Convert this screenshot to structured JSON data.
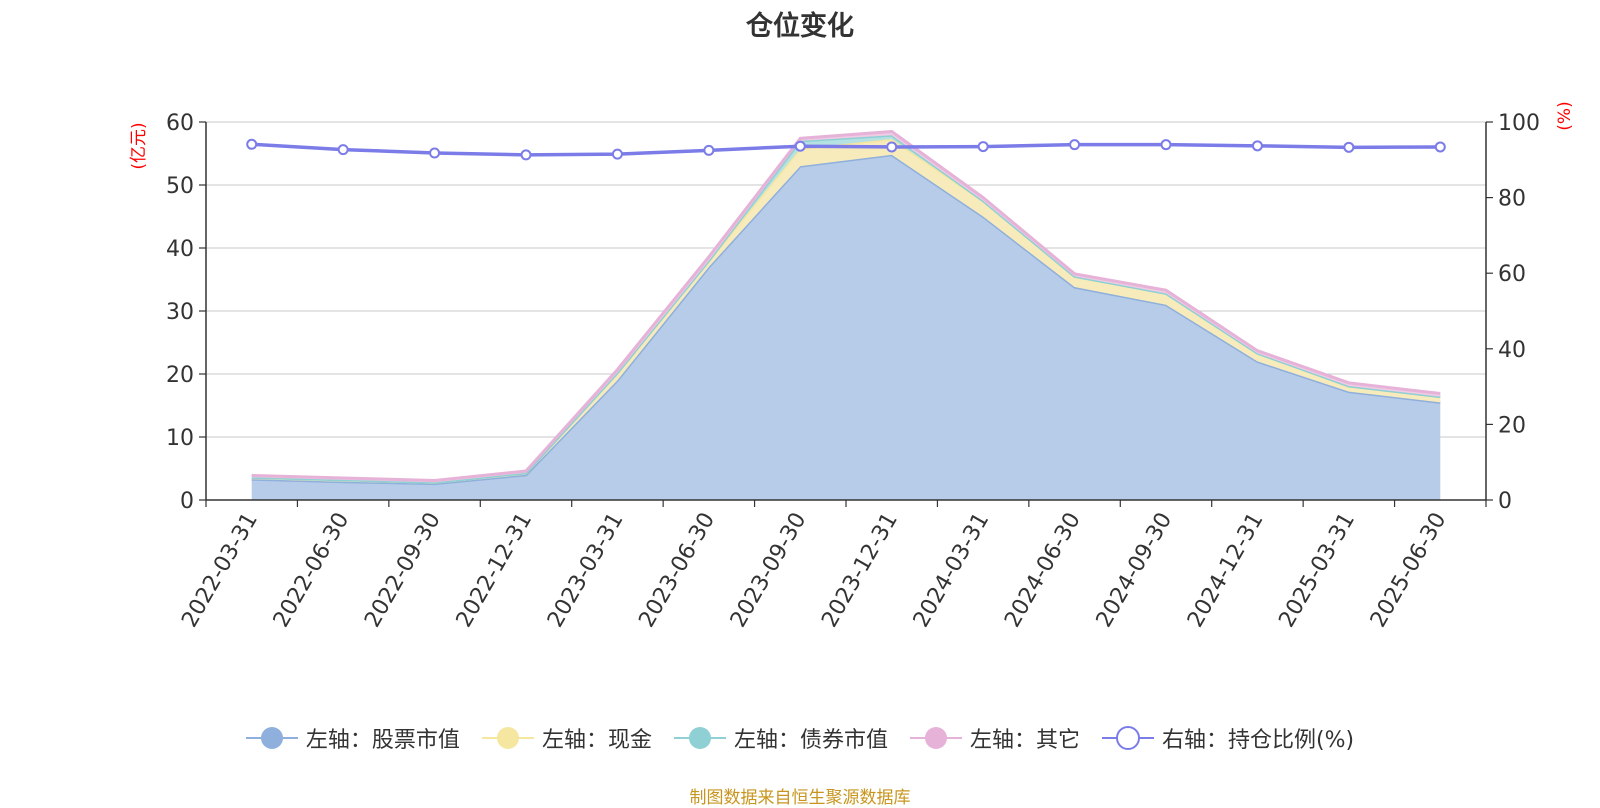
{
  "chart_data": {
    "type": "area",
    "title": "仓位变化",
    "left_axis_label": "(亿元)",
    "right_axis_label": "(%)",
    "categories": [
      "2022-03-31",
      "2022-06-30",
      "2022-09-30",
      "2022-12-31",
      "2023-03-31",
      "2023-06-30",
      "2023-09-30",
      "2023-12-31",
      "2024-03-31",
      "2024-06-30",
      "2024-09-30",
      "2024-12-31",
      "2025-03-31",
      "2025-06-30"
    ],
    "left_ylim": [
      0,
      60
    ],
    "left_ticks": [
      "0",
      "10",
      "20",
      "30",
      "40",
      "50",
      "60"
    ],
    "right_ylim": [
      0,
      100
    ],
    "right_ticks": [
      "0",
      "20",
      "40",
      "60",
      "80",
      "100"
    ],
    "stacked": true,
    "grid": true,
    "legend_position": "bottom",
    "series": [
      {
        "name": "左轴：股票市值",
        "axis": "left",
        "color": "#8fafdc",
        "fill": "#b7cce9",
        "values": [
          3.3,
          2.9,
          2.6,
          4.0,
          19.0,
          37.0,
          53.0,
          54.8,
          45.0,
          33.8,
          31.0,
          22.0,
          17.2,
          15.5
        ]
      },
      {
        "name": "左轴：现金",
        "axis": "left",
        "color": "#f5e6a0",
        "fill": "#f8ebbb",
        "values": [
          0.3,
          0.3,
          0.2,
          0.3,
          1.2,
          1.0,
          2.8,
          2.5,
          2.5,
          1.7,
          1.8,
          1.3,
          0.9,
          0.9
        ]
      },
      {
        "name": "左轴：债券市值",
        "axis": "left",
        "color": "#8fd0d4",
        "fill": "#b5e1e3",
        "values": [
          0.0,
          0.0,
          0.0,
          0.0,
          0.0,
          0.0,
          1.2,
          0.6,
          0.0,
          0.0,
          0.0,
          0.0,
          0.0,
          0.0
        ]
      },
      {
        "name": "左轴：其它",
        "axis": "left",
        "color": "#e6b2d8",
        "fill": "#efcbe4",
        "values": [
          0.3,
          0.3,
          0.3,
          0.3,
          0.5,
          0.6,
          0.4,
          0.6,
          0.5,
          0.4,
          0.5,
          0.4,
          0.5,
          0.5
        ]
      },
      {
        "name": "右轴：持仓比例(%)",
        "axis": "right",
        "type": "line",
        "color": "#7b7ce8",
        "values": [
          94.1,
          92.7,
          91.8,
          91.3,
          91.5,
          92.5,
          93.6,
          93.4,
          93.5,
          94.0,
          94.0,
          93.7,
          93.3,
          93.4
        ]
      }
    ]
  },
  "footer": {
    "source": "制图数据来自恒生聚源数据库"
  }
}
